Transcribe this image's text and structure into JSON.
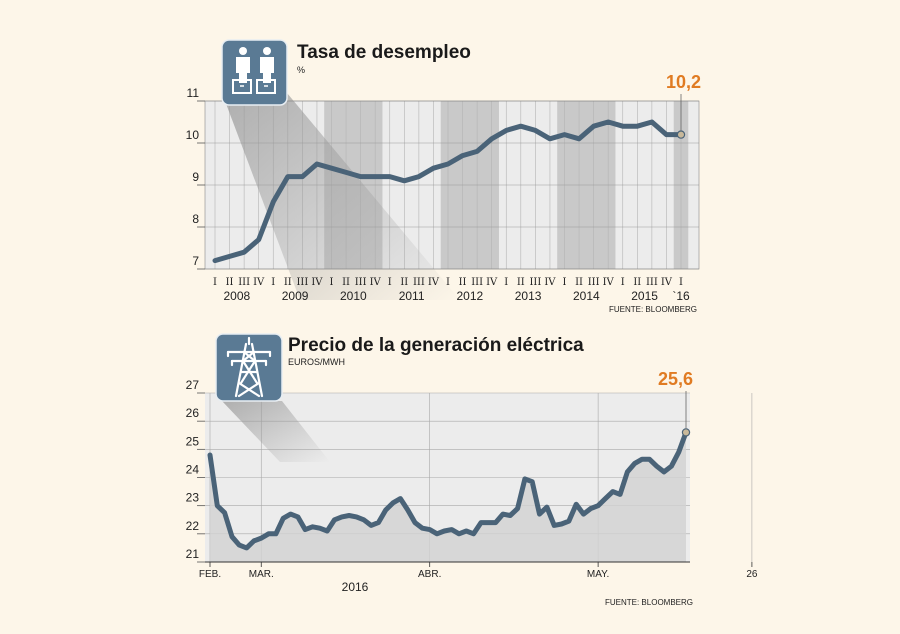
{
  "colors": {
    "background": "#fdf6e9",
    "line": "#4a6378",
    "icon_bg": "#5a7a94",
    "shade": "#c9c9c9",
    "accent": "#e07b22",
    "marker": "#c8b89a"
  },
  "chart_data": [
    {
      "type": "line",
      "title": "Tasa de desempleo",
      "ylabel": "%",
      "ylim": [
        7,
        11
      ],
      "yticks": [
        7,
        8,
        9,
        10,
        11
      ],
      "quarter_labels": [
        "I",
        "II",
        "III",
        "IV",
        "I",
        "II",
        "III",
        "IV",
        "I",
        "II",
        "III",
        "IV",
        "I",
        "II",
        "III",
        "IV",
        "I",
        "II",
        "III",
        "IV",
        "I",
        "II",
        "III",
        "IV",
        "I",
        "II",
        "III",
        "IV",
        "I",
        "II",
        "III",
        "IV",
        "I"
      ],
      "year_labels": [
        "2008",
        "2009",
        "2010",
        "2011",
        "2012",
        "2013",
        "2014",
        "2015",
        "`16"
      ],
      "shaded_years": [
        "2010",
        "2012",
        "2014",
        "`16"
      ],
      "values": [
        7.2,
        7.3,
        7.4,
        7.7,
        8.6,
        9.2,
        9.2,
        9.5,
        9.4,
        9.3,
        9.2,
        9.2,
        9.2,
        9.1,
        9.2,
        9.4,
        9.5,
        9.7,
        9.8,
        10.1,
        10.3,
        10.4,
        10.3,
        10.1,
        10.2,
        10.1,
        10.4,
        10.5,
        10.4,
        10.4,
        10.5,
        10.2,
        10.2
      ],
      "last_value_label": "10,2",
      "source": "FUENTE: BLOOMBERG",
      "icon": "unemployed-people-icon"
    },
    {
      "type": "line",
      "title": "Precio de la generación eléctrica",
      "ylabel": "EUROS/MWH",
      "ylim": [
        21,
        27
      ],
      "yticks": [
        21,
        22,
        23,
        24,
        25,
        26,
        27
      ],
      "x_labels": [
        "FEB.",
        "MAR.",
        "ABR.",
        "MAY.",
        "26"
      ],
      "x_label_positions": [
        0,
        7,
        30,
        53,
        74
      ],
      "year_label": "2016",
      "values": [
        24.8,
        23.0,
        22.75,
        21.9,
        21.6,
        21.5,
        21.75,
        21.85,
        22.0,
        22.0,
        22.55,
        22.7,
        22.6,
        22.15,
        22.25,
        22.2,
        22.1,
        22.5,
        22.6,
        22.65,
        22.6,
        22.5,
        22.3,
        22.4,
        22.85,
        23.1,
        23.25,
        22.85,
        22.4,
        22.2,
        22.15,
        22.0,
        22.1,
        22.15,
        22.0,
        22.1,
        22.0,
        22.4,
        22.4,
        22.4,
        22.7,
        22.65,
        22.9,
        23.95,
        23.85,
        22.7,
        22.95,
        22.3,
        22.35,
        22.45,
        23.05,
        22.7,
        22.9,
        23.0,
        23.25,
        23.5,
        23.4,
        24.2,
        24.5,
        24.65,
        24.65,
        24.4,
        24.2,
        24.4,
        24.9,
        25.6
      ],
      "last_value_label": "25,6",
      "source": "FUENTE: BLOOMBERG",
      "icon": "power-tower-icon"
    }
  ]
}
